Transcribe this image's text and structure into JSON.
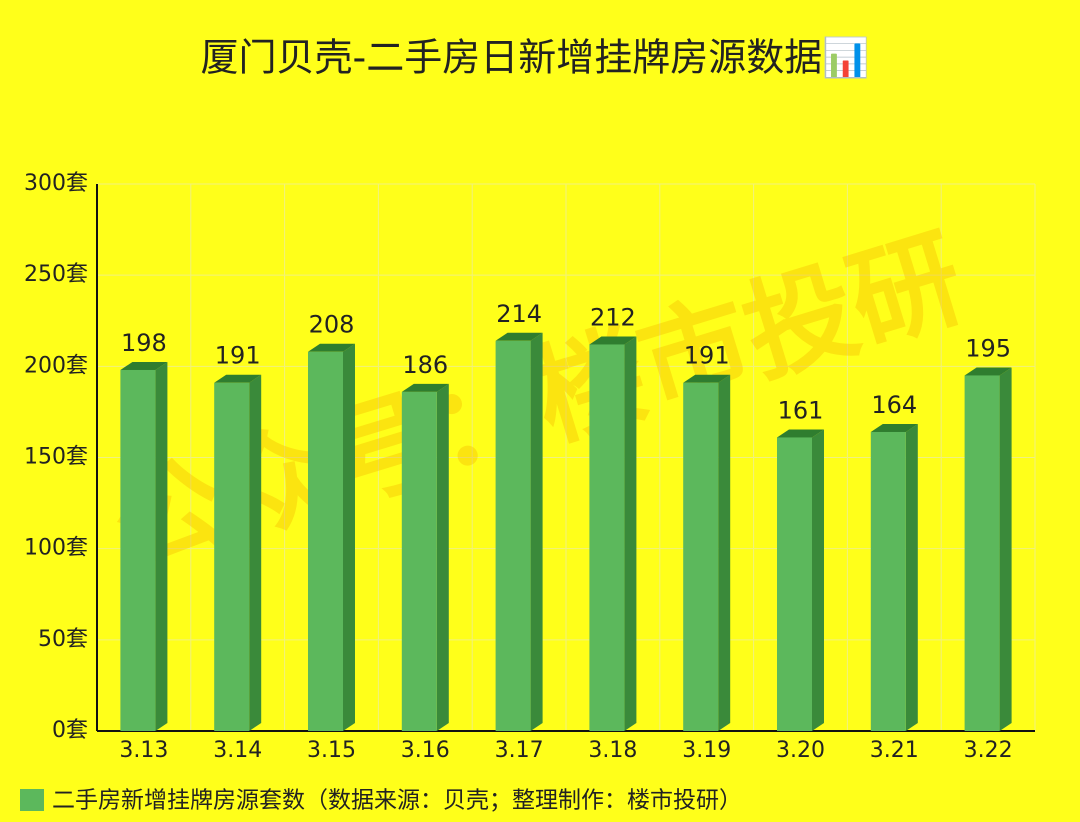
{
  "chart_data": {
    "type": "bar",
    "title": "厦门贝壳-二手房日新增挂牌房源数据📊",
    "watermark": "公众号：楼市投研",
    "categories": [
      "3.13",
      "3.14",
      "3.15",
      "3.16",
      "3.17",
      "3.18",
      "3.19",
      "3.20",
      "3.21",
      "3.22"
    ],
    "series": [
      {
        "name": "二手房新增挂牌房源套数（数据来源：贝壳；整理制作：楼市投研）",
        "color": "#5cb85c",
        "values": [
          198,
          191,
          208,
          186,
          214,
          212,
          191,
          161,
          164,
          195
        ]
      }
    ],
    "ylim": [
      0,
      300
    ],
    "yticks": [
      {
        "value": 0,
        "label": "0套"
      },
      {
        "value": 50,
        "label": "50套"
      },
      {
        "value": 100,
        "label": "100套"
      },
      {
        "value": 150,
        "label": "150套"
      },
      {
        "value": 200,
        "label": "200套"
      },
      {
        "value": 250,
        "label": "250套"
      },
      {
        "value": 300,
        "label": "300套"
      }
    ],
    "grid": true
  }
}
